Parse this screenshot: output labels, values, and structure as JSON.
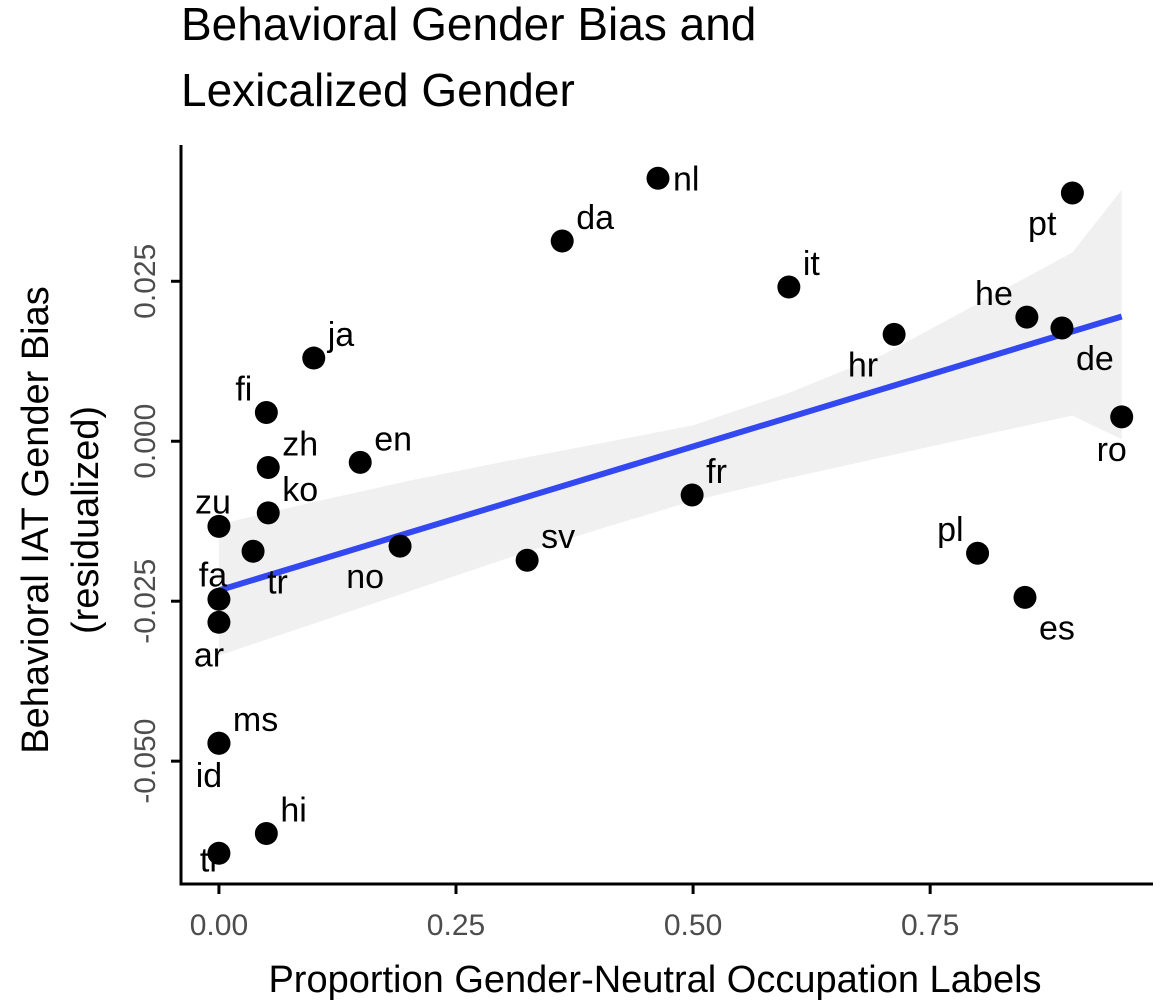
{
  "chart_data": {
    "type": "scatter",
    "title": "Behavioral Gender Bias and Lexicalized Gender",
    "title_lines": [
      "Behavioral Gender Bias and",
      "Lexicalized Gender"
    ],
    "xlabel": "Proportion Gender-Neutral Occupation Labels",
    "ylabel_lines": [
      "Behavioral IAT Gender Bias",
      "(residualized)"
    ],
    "xlim": [
      -0.04,
      0.985
    ],
    "ylim": [
      -0.0692,
      0.0463
    ],
    "x_ticks": [
      0.0,
      0.25,
      0.5,
      0.75
    ],
    "x_tick_labels": [
      "0.00",
      "0.25",
      "0.50",
      "0.75"
    ],
    "y_ticks": [
      -0.05,
      -0.025,
      0.0,
      0.025
    ],
    "y_tick_labels": [
      "-0.050",
      "-0.025",
      "0.000",
      "0.025"
    ],
    "grid": false,
    "colors": {
      "points": "#000000",
      "fit_line": "#3348F0",
      "ci_band": "#EBEBEB",
      "axis": "#000000",
      "tick_text": "#4d4d4d"
    },
    "points": [
      {
        "label": "nl",
        "x": 0.463,
        "y": 0.0411,
        "label_pos": "right"
      },
      {
        "label": "da",
        "x": 0.362,
        "y": 0.0313,
        "label_pos": "upper-right"
      },
      {
        "label": "pt",
        "x": 0.9,
        "y": 0.0388,
        "label_pos": "lower-left"
      },
      {
        "label": "it",
        "x": 0.601,
        "y": 0.0241,
        "label_pos": "upper-right"
      },
      {
        "label": "he",
        "x": 0.852,
        "y": 0.0194,
        "label_pos": "upper-left"
      },
      {
        "label": "hr",
        "x": 0.712,
        "y": 0.0167,
        "label_pos": "lower-left"
      },
      {
        "label": "de",
        "x": 0.889,
        "y": 0.0177,
        "label_pos": "lower-right"
      },
      {
        "label": "ro",
        "x": 0.952,
        "y": 0.0038,
        "label_pos": "below"
      },
      {
        "label": "ja",
        "x": 0.1,
        "y": 0.013,
        "label_pos": "upper-right"
      },
      {
        "label": "fi",
        "x": 0.05,
        "y": 0.0045,
        "label_pos": "upper-left"
      },
      {
        "label": "zh",
        "x": 0.052,
        "y": -0.0041,
        "label_pos": "upper-right"
      },
      {
        "label": "en",
        "x": 0.149,
        "y": -0.0033,
        "label_pos": "upper-right"
      },
      {
        "label": "fr",
        "x": 0.499,
        "y": -0.0084,
        "label_pos": "upper-right"
      },
      {
        "label": "ko",
        "x": 0.052,
        "y": -0.0112,
        "label_pos": "upper-right"
      },
      {
        "label": "zu",
        "x": 0.0,
        "y": -0.0133,
        "label_pos": "above"
      },
      {
        "label": "tr",
        "x": 0.036,
        "y": -0.0172,
        "label_pos": "lower-right"
      },
      {
        "label": "no",
        "x": 0.191,
        "y": -0.0164,
        "label_pos": "lower-left"
      },
      {
        "label": "sv",
        "x": 0.325,
        "y": -0.0186,
        "label_pos": "upper-right"
      },
      {
        "label": "pl",
        "x": 0.8,
        "y": -0.0175,
        "label_pos": "upper-left"
      },
      {
        "label": "es",
        "x": 0.85,
        "y": -0.0244,
        "label_pos": "lower-right"
      },
      {
        "label": "fa",
        "x": 0.0,
        "y": -0.0247,
        "label_pos": "above"
      },
      {
        "label": "ar",
        "x": 0.0,
        "y": -0.0283,
        "label_pos": "below"
      },
      {
        "label": "ms",
        "x": 0.0,
        "y": -0.0472,
        "label_pos": "upper-right"
      },
      {
        "label": "id",
        "x": 0.0,
        "y": -0.0472,
        "label_pos": "below"
      },
      {
        "label": "hi",
        "x": 0.05,
        "y": -0.0613,
        "label_pos": "upper-right"
      },
      {
        "label": "tl",
        "x": 0.0,
        "y": -0.0644,
        "label_pos": "left"
      }
    ],
    "fit_line": {
      "x": [
        0.0,
        0.952
      ],
      "y": [
        -0.0233,
        0.0195
      ]
    },
    "ci_band": {
      "x": [
        0.0,
        0.1,
        0.2,
        0.3,
        0.4,
        0.5,
        0.6,
        0.7,
        0.8,
        0.9,
        0.952
      ],
      "upper": [
        -0.013,
        -0.0095,
        -0.0062,
        -0.0032,
        -0.0004,
        0.0025,
        0.0075,
        0.0135,
        0.0215,
        0.0295,
        0.0393
      ],
      "lower": [
        -0.0335,
        -0.0285,
        -0.0235,
        -0.0185,
        -0.0138,
        -0.0093,
        -0.0058,
        -0.0025,
        0.0008,
        0.004,
        0.0003
      ]
    }
  }
}
